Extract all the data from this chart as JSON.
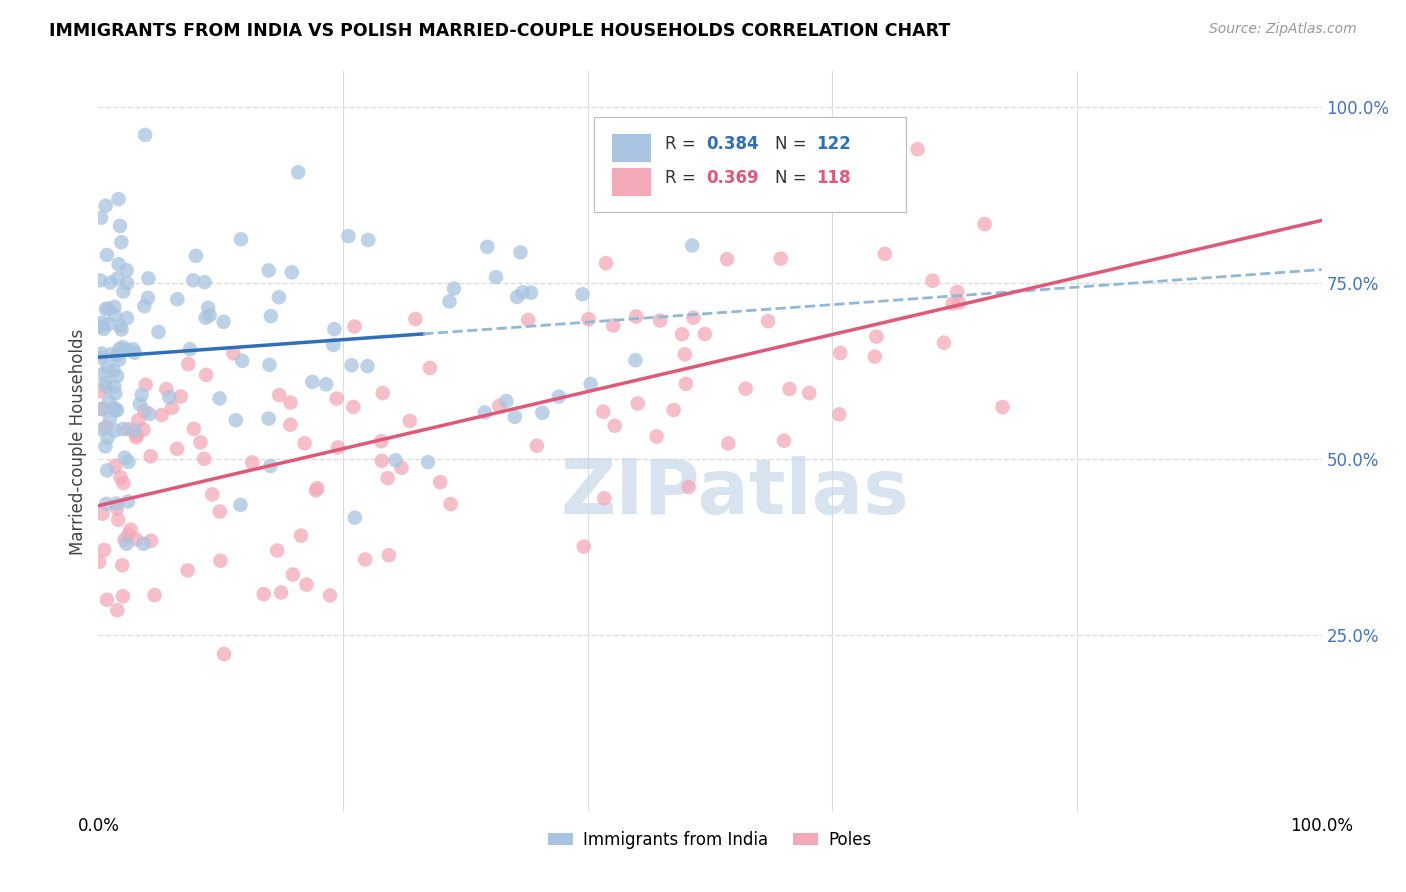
{
  "title": "IMMIGRANTS FROM INDIA VS POLISH MARRIED-COUPLE HOUSEHOLDS CORRELATION CHART",
  "source": "Source: ZipAtlas.com",
  "ylabel": "Married-couple Households",
  "legend_labels": [
    "Immigrants from India",
    "Poles"
  ],
  "india_R": 0.384,
  "india_N": 122,
  "poles_R": 0.369,
  "poles_N": 118,
  "india_color": "#a8c4e0",
  "india_line_color": "#2e6fba",
  "poles_color": "#f4a8b8",
  "poles_line_color": "#e05878",
  "watermark": "ZIPatlas",
  "watermark_color": "#c8d8ea",
  "right_ytick_color": "#4472c4",
  "dashed_line_color": "#90b8d8",
  "grid_color": "#dddddd",
  "grid_style": "--",
  "ylim": [
    0.0,
    1.05
  ],
  "xlim": [
    0.0,
    1.0
  ],
  "ytick_positions": [
    0.25,
    0.5,
    0.75,
    1.0
  ],
  "ytick_labels": [
    "25.0%",
    "50.0%",
    "75.0%",
    "100.0%"
  ],
  "xtick_positions": [
    0.0,
    1.0
  ],
  "xtick_labels": [
    "0.0%",
    "100.0%"
  ]
}
